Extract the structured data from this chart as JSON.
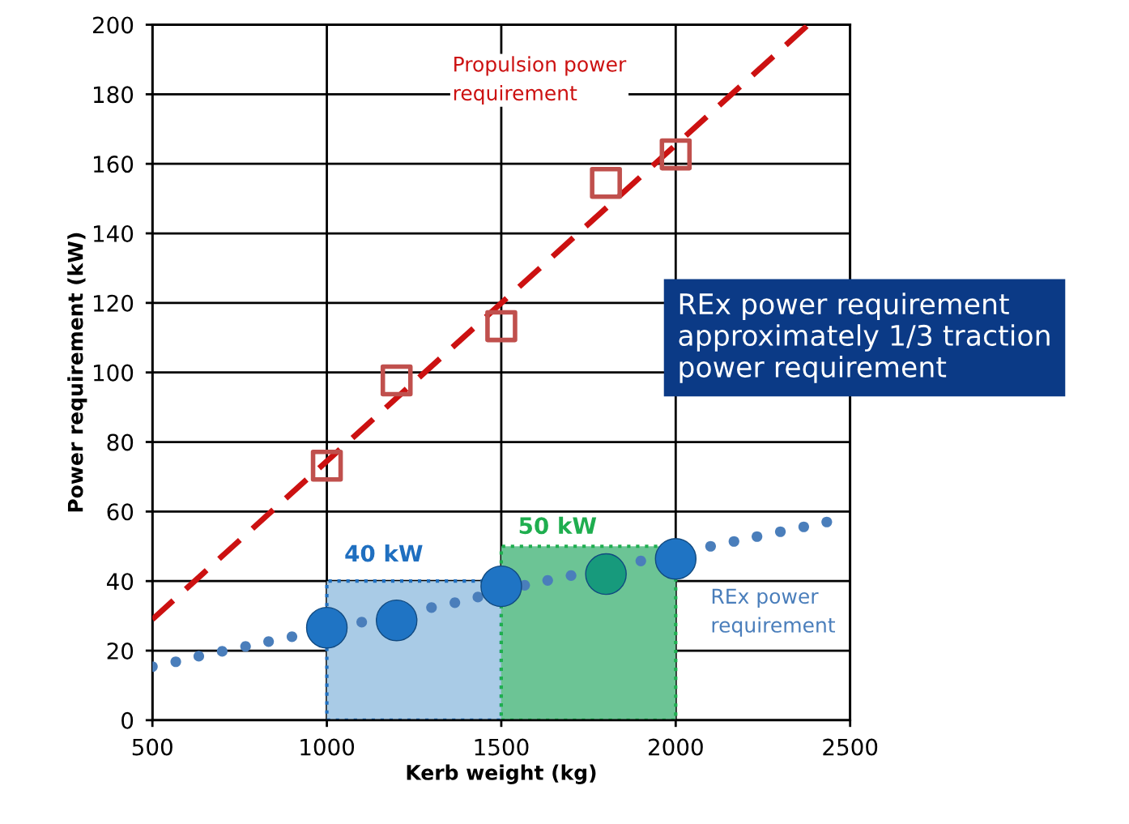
{
  "chart_data": {
    "type": "scatter",
    "xlabel": "Kerb weight (kg)",
    "ylabel": "Power requirement (kW)",
    "xlim": [
      500,
      2500
    ],
    "xticks": [
      500,
      1000,
      1500,
      2000,
      2500
    ],
    "ylim": [
      0,
      200
    ],
    "yticks": [
      0,
      20,
      40,
      60,
      80,
      100,
      120,
      140,
      160,
      180,
      200
    ],
    "grid": true,
    "legend": false,
    "series": [
      {
        "type": "bar",
        "x": [
          1250,
          1750
        ],
        "values": [
          40,
          50
        ],
        "colors": [
          "#a9cbe6",
          "#6cc495"
        ],
        "line_style": "dotted"
      },
      {
        "type": "line",
        "x": [
          500,
          2380
        ],
        "values": [
          29,
          200
        ],
        "color": "#cc1111",
        "line_style": "dashed",
        "marker": "none"
      },
      {
        "x": [
          1000,
          1200,
          1500,
          1800,
          2000
        ],
        "values": [
          73.2,
          97.7,
          113.3,
          154.5,
          162.7
        ],
        "color": "#c0504d",
        "marker": "square"
      },
      {
        "x": [
          500,
          567,
          633,
          700,
          767,
          833,
          900,
          1100,
          1300,
          1367,
          1433,
          1567,
          1633,
          1700,
          1900,
          2100,
          2167,
          2233,
          2300,
          2367,
          2433
        ],
        "values": [
          15.4,
          16.8,
          18.4,
          19.8,
          21.2,
          22.6,
          24,
          28.2,
          32.4,
          33.8,
          35.4,
          38.8,
          40.2,
          41.6,
          45.8,
          50,
          51.4,
          52.8,
          54.2,
          55.6,
          57
        ],
        "color": "#4a7ebb",
        "marker": "circle"
      },
      {
        "x": [
          1000,
          1200,
          1500,
          1800,
          2000
        ],
        "values": [
          26.6,
          28.7,
          38.5,
          42,
          46.4
        ],
        "colors": [
          "#1f74c4",
          "#1f74c4",
          "#1f74c4",
          "#179a7c",
          "#1f74c4"
        ],
        "marker": "circle"
      }
    ],
    "annotations": [
      "Propulsion power\nrequirement",
      "REx power\nrequirement",
      "40 kW",
      "50 kW",
      "REx power requirement\napproximately 1/3 traction\npower requirement"
    ]
  }
}
